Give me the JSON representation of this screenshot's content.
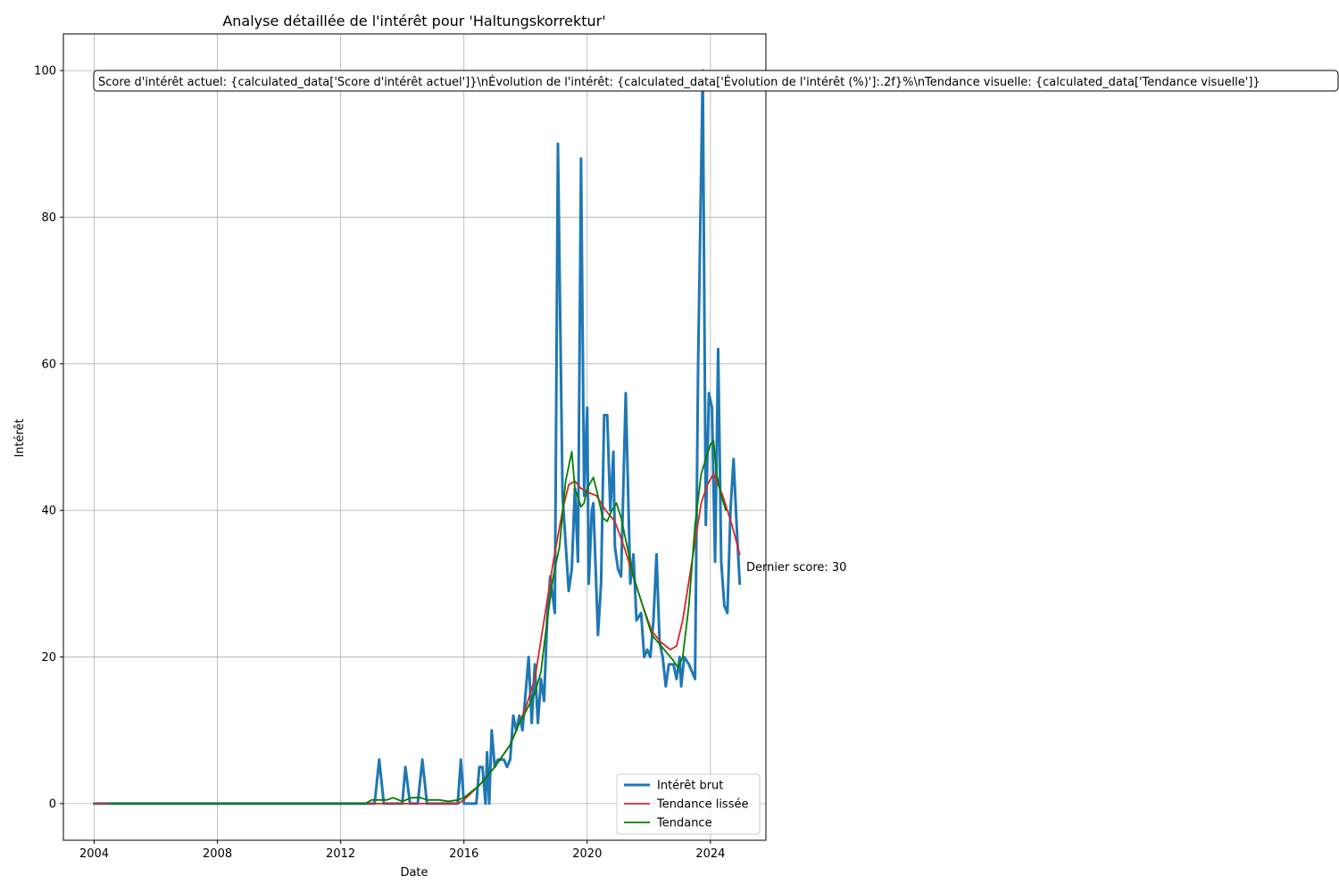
{
  "chart_data": {
    "type": "line",
    "title": "Analyse détaillée de l'intérêt pour 'Haltungskorrektur'",
    "xlabel": "Date",
    "ylabel": "Intérêt",
    "xlim": [
      2003.0,
      2025.8
    ],
    "ylim": [
      -5,
      105
    ],
    "xticks": [
      "2004",
      "2008",
      "2012",
      "2016",
      "2020",
      "2024"
    ],
    "yticks": [
      "0",
      "20",
      "40",
      "60",
      "80",
      "100"
    ],
    "grid": true,
    "legend_position": "lower-right",
    "info_box": "Score d'intérêt actuel: {calculated_data['Score d'intérêt actuel']}\\nÉvolution de l'intérêt: {calculated_data['Évolution de l'intérêt (%)']:.2f}%\\nTendance visuelle: {calculated_data['Tendance visuelle']}",
    "last_score_label": "Dernier score: 30",
    "series": [
      {
        "name": "Intérêt brut",
        "color": "#1f77b4",
        "points": [
          [
            2004.0,
            0
          ],
          [
            2012.7,
            0
          ],
          [
            2013.1,
            0
          ],
          [
            2013.25,
            6
          ],
          [
            2013.4,
            0
          ],
          [
            2014.0,
            0
          ],
          [
            2014.1,
            5
          ],
          [
            2014.25,
            0
          ],
          [
            2014.5,
            0
          ],
          [
            2014.65,
            6
          ],
          [
            2014.8,
            0
          ],
          [
            2015.8,
            0
          ],
          [
            2015.9,
            6
          ],
          [
            2016.0,
            0
          ],
          [
            2016.4,
            0
          ],
          [
            2016.5,
            5
          ],
          [
            2016.6,
            5
          ],
          [
            2016.7,
            0
          ],
          [
            2016.75,
            7
          ],
          [
            2016.82,
            0
          ],
          [
            2016.9,
            10
          ],
          [
            2017.0,
            5
          ],
          [
            2017.1,
            6
          ],
          [
            2017.3,
            6
          ],
          [
            2017.4,
            5
          ],
          [
            2017.5,
            6
          ],
          [
            2017.6,
            12
          ],
          [
            2017.7,
            10
          ],
          [
            2017.8,
            12
          ],
          [
            2017.9,
            10
          ],
          [
            2018.0,
            15
          ],
          [
            2018.1,
            20
          ],
          [
            2018.2,
            11
          ],
          [
            2018.3,
            19
          ],
          [
            2018.4,
            11
          ],
          [
            2018.5,
            17
          ],
          [
            2018.6,
            14
          ],
          [
            2018.7,
            25
          ],
          [
            2018.8,
            31
          ],
          [
            2018.95,
            26
          ],
          [
            2019.05,
            90
          ],
          [
            2019.2,
            42
          ],
          [
            2019.4,
            29
          ],
          [
            2019.5,
            32
          ],
          [
            2019.6,
            43
          ],
          [
            2019.7,
            33
          ],
          [
            2019.8,
            88
          ],
          [
            2019.9,
            42
          ],
          [
            2020.0,
            54
          ],
          [
            2020.05,
            30
          ],
          [
            2020.15,
            40
          ],
          [
            2020.2,
            41
          ],
          [
            2020.35,
            23
          ],
          [
            2020.45,
            30
          ],
          [
            2020.55,
            53
          ],
          [
            2020.65,
            53
          ],
          [
            2020.75,
            40
          ],
          [
            2020.85,
            48
          ],
          [
            2020.9,
            35
          ],
          [
            2021.0,
            32
          ],
          [
            2021.1,
            31
          ],
          [
            2021.25,
            56
          ],
          [
            2021.4,
            30
          ],
          [
            2021.5,
            34
          ],
          [
            2021.6,
            25
          ],
          [
            2021.75,
            26
          ],
          [
            2021.85,
            20
          ],
          [
            2021.95,
            21
          ],
          [
            2022.05,
            20
          ],
          [
            2022.15,
            25
          ],
          [
            2022.25,
            34
          ],
          [
            2022.35,
            22
          ],
          [
            2022.45,
            20
          ],
          [
            2022.55,
            16
          ],
          [
            2022.65,
            19
          ],
          [
            2022.8,
            19
          ],
          [
            2022.9,
            17
          ],
          [
            2023.0,
            20
          ],
          [
            2023.05,
            16
          ],
          [
            2023.15,
            20
          ],
          [
            2023.3,
            19
          ],
          [
            2023.4,
            18
          ],
          [
            2023.5,
            17
          ],
          [
            2023.6,
            60
          ],
          [
            2023.75,
            100
          ],
          [
            2023.85,
            38
          ],
          [
            2023.95,
            56
          ],
          [
            2024.05,
            54
          ],
          [
            2024.15,
            33
          ],
          [
            2024.25,
            62
          ],
          [
            2024.35,
            33
          ],
          [
            2024.45,
            27
          ],
          [
            2024.55,
            26
          ],
          [
            2024.65,
            40
          ],
          [
            2024.75,
            47
          ],
          [
            2024.85,
            38
          ],
          [
            2024.95,
            30
          ]
        ]
      },
      {
        "name": "Tendance lissée",
        "color": "#d62728",
        "points": [
          [
            2004.0,
            0
          ],
          [
            2004.5,
            0
          ],
          [
            2015.8,
            0
          ],
          [
            2016.0,
            0.5
          ],
          [
            2016.5,
            2.5
          ],
          [
            2017.0,
            5
          ],
          [
            2017.5,
            8
          ],
          [
            2018.0,
            13
          ],
          [
            2018.3,
            17
          ],
          [
            2018.6,
            25
          ],
          [
            2018.9,
            33
          ],
          [
            2019.2,
            40
          ],
          [
            2019.4,
            43.5
          ],
          [
            2019.6,
            44
          ],
          [
            2019.8,
            43
          ],
          [
            2020.0,
            42.5
          ],
          [
            2020.3,
            42
          ],
          [
            2020.6,
            40
          ],
          [
            2020.9,
            38.5
          ],
          [
            2021.2,
            35
          ],
          [
            2021.5,
            31
          ],
          [
            2021.8,
            27
          ],
          [
            2022.1,
            23.5
          ],
          [
            2022.4,
            22
          ],
          [
            2022.7,
            21
          ],
          [
            2022.9,
            21.5
          ],
          [
            2023.1,
            25
          ],
          [
            2023.4,
            33
          ],
          [
            2023.7,
            41
          ],
          [
            2023.9,
            43.5
          ],
          [
            2024.1,
            45
          ],
          [
            2024.4,
            42
          ],
          [
            2024.7,
            38
          ],
          [
            2024.95,
            34
          ]
        ]
      },
      {
        "name": "Tendance",
        "color": "#008000",
        "points": [
          [
            2004.5,
            0
          ],
          [
            2012.8,
            0
          ],
          [
            2013.0,
            0.5
          ],
          [
            2013.5,
            0.5
          ],
          [
            2013.7,
            0.8
          ],
          [
            2014.0,
            0.3
          ],
          [
            2014.3,
            0.8
          ],
          [
            2014.6,
            0.8
          ],
          [
            2014.8,
            0.5
          ],
          [
            2015.2,
            0.5
          ],
          [
            2015.5,
            0.3
          ],
          [
            2015.8,
            0.5
          ],
          [
            2016.0,
            0.8
          ],
          [
            2016.5,
            2.5
          ],
          [
            2017.0,
            5
          ],
          [
            2017.5,
            8
          ],
          [
            2017.8,
            11
          ],
          [
            2018.0,
            12.5
          ],
          [
            2018.3,
            15
          ],
          [
            2018.5,
            18
          ],
          [
            2018.7,
            25
          ],
          [
            2018.9,
            31
          ],
          [
            2019.1,
            35
          ],
          [
            2019.3,
            44
          ],
          [
            2019.5,
            48
          ],
          [
            2019.6,
            43
          ],
          [
            2019.8,
            40.5
          ],
          [
            2019.9,
            41
          ],
          [
            2020.0,
            43
          ],
          [
            2020.2,
            44.5
          ],
          [
            2020.35,
            42
          ],
          [
            2020.5,
            39
          ],
          [
            2020.65,
            38.5
          ],
          [
            2020.8,
            40
          ],
          [
            2020.95,
            41
          ],
          [
            2021.1,
            39
          ],
          [
            2021.3,
            35
          ],
          [
            2021.5,
            31
          ],
          [
            2021.8,
            27
          ],
          [
            2022.1,
            23
          ],
          [
            2022.4,
            21.5
          ],
          [
            2022.6,
            20.5
          ],
          [
            2022.8,
            19.5
          ],
          [
            2022.95,
            18.5
          ],
          [
            2023.1,
            20
          ],
          [
            2023.3,
            27
          ],
          [
            2023.5,
            38
          ],
          [
            2023.7,
            45
          ],
          [
            2023.85,
            47
          ],
          [
            2024.0,
            49
          ],
          [
            2024.1,
            49.5
          ],
          [
            2024.2,
            45
          ],
          [
            2024.35,
            42
          ],
          [
            2024.5,
            40
          ]
        ]
      }
    ]
  }
}
